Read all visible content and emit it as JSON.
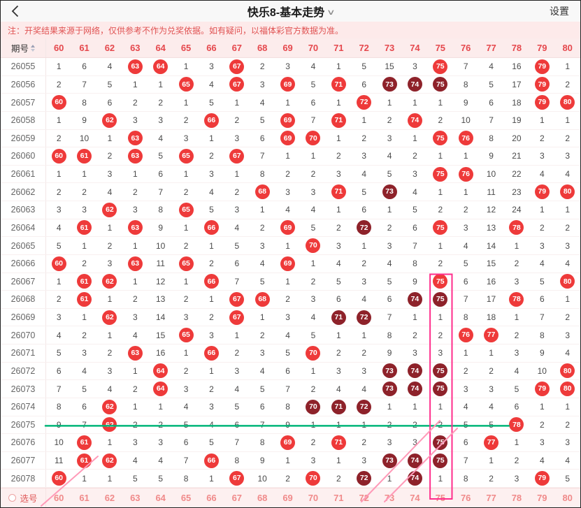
{
  "header": {
    "title": "快乐8-基本走势",
    "settings_label": "设置"
  },
  "notice": {
    "text": "注：开奖结果来源于网络，仅供参考不作为兑奖依据。如有疑问，以福体彩官方数据为准。"
  },
  "table": {
    "period_header": "期号",
    "columns": [
      60,
      61,
      62,
      63,
      64,
      65,
      66,
      67,
      68,
      69,
      70,
      71,
      72,
      73,
      74,
      75,
      76,
      77,
      78,
      79,
      80
    ],
    "legend": {
      "C": "drawn-number",
      "D": "drawn-number-highlight"
    },
    "rows": [
      {
        "period": "26055",
        "cells": [
          "1",
          "6",
          "4",
          "C",
          "C",
          "1",
          "3",
          "C",
          "2",
          "3",
          "4",
          "1",
          "5",
          "15",
          "3",
          "C",
          "7",
          "4",
          "16",
          "C",
          "1"
        ]
      },
      {
        "period": "26056",
        "cells": [
          "2",
          "7",
          "5",
          "1",
          "1",
          "C",
          "4",
          "C",
          "3",
          "C",
          "5",
          "C",
          "6",
          "D",
          "D",
          "D",
          "8",
          "5",
          "17",
          "C",
          "2"
        ]
      },
      {
        "period": "26057",
        "cells": [
          "C",
          "8",
          "6",
          "2",
          "2",
          "1",
          "5",
          "1",
          "4",
          "1",
          "6",
          "1",
          "C",
          "1",
          "1",
          "1",
          "9",
          "6",
          "18",
          "C",
          "C"
        ]
      },
      {
        "period": "26058",
        "cells": [
          "1",
          "9",
          "C",
          "3",
          "3",
          "2",
          "C",
          "2",
          "5",
          "C",
          "7",
          "C",
          "1",
          "2",
          "C",
          "2",
          "10",
          "7",
          "19",
          "1",
          "1"
        ]
      },
      {
        "period": "26059",
        "cells": [
          "2",
          "10",
          "1",
          "C",
          "4",
          "3",
          "1",
          "3",
          "6",
          "C",
          "C",
          "1",
          "2",
          "3",
          "1",
          "C",
          "C",
          "8",
          "20",
          "2",
          "2"
        ]
      },
      {
        "period": "26060",
        "cells": [
          "C",
          "C",
          "2",
          "C",
          "5",
          "C",
          "2",
          "C",
          "7",
          "1",
          "1",
          "2",
          "3",
          "4",
          "2",
          "1",
          "1",
          "9",
          "21",
          "3",
          "3"
        ]
      },
      {
        "period": "26061",
        "cells": [
          "1",
          "1",
          "3",
          "1",
          "6",
          "1",
          "3",
          "1",
          "8",
          "2",
          "2",
          "3",
          "4",
          "5",
          "3",
          "C",
          "C",
          "10",
          "22",
          "4",
          "4"
        ]
      },
      {
        "period": "26062",
        "cells": [
          "2",
          "2",
          "4",
          "2",
          "7",
          "2",
          "4",
          "2",
          "C",
          "3",
          "3",
          "C",
          "5",
          "D",
          "4",
          "1",
          "1",
          "11",
          "23",
          "C",
          "C"
        ]
      },
      {
        "period": "26063",
        "cells": [
          "3",
          "3",
          "C",
          "3",
          "8",
          "C",
          "5",
          "3",
          "1",
          "4",
          "4",
          "1",
          "6",
          "1",
          "5",
          "2",
          "2",
          "12",
          "24",
          "1",
          "1"
        ]
      },
      {
        "period": "26064",
        "cells": [
          "4",
          "C",
          "1",
          "C",
          "9",
          "1",
          "C",
          "4",
          "2",
          "C",
          "5",
          "2",
          "D",
          "2",
          "6",
          "C",
          "3",
          "13",
          "C",
          "2",
          "2"
        ]
      },
      {
        "period": "26065",
        "cells": [
          "5",
          "1",
          "2",
          "1",
          "10",
          "2",
          "1",
          "5",
          "3",
          "1",
          "C",
          "3",
          "1",
          "3",
          "7",
          "1",
          "4",
          "14",
          "1",
          "3",
          "3"
        ]
      },
      {
        "period": "26066",
        "cells": [
          "C",
          "2",
          "3",
          "C",
          "11",
          "C",
          "2",
          "6",
          "4",
          "C",
          "1",
          "4",
          "2",
          "4",
          "8",
          "2",
          "5",
          "15",
          "2",
          "4",
          "4"
        ]
      },
      {
        "period": "26067",
        "cells": [
          "1",
          "C",
          "C",
          "1",
          "12",
          "1",
          "C",
          "7",
          "5",
          "1",
          "2",
          "5",
          "3",
          "5",
          "9",
          "C",
          "6",
          "16",
          "3",
          "5",
          "C"
        ]
      },
      {
        "period": "26068",
        "cells": [
          "2",
          "C",
          "1",
          "2",
          "13",
          "2",
          "1",
          "C",
          "C",
          "2",
          "3",
          "6",
          "4",
          "6",
          "D",
          "D",
          "7",
          "17",
          "C",
          "6",
          "1"
        ]
      },
      {
        "period": "26069",
        "cells": [
          "3",
          "1",
          "C",
          "3",
          "14",
          "3",
          "2",
          "C",
          "1",
          "3",
          "4",
          "D",
          "D",
          "7",
          "1",
          "1",
          "8",
          "18",
          "1",
          "7",
          "2"
        ]
      },
      {
        "period": "26070",
        "cells": [
          "4",
          "2",
          "1",
          "4",
          "15",
          "C",
          "3",
          "1",
          "2",
          "4",
          "5",
          "1",
          "1",
          "8",
          "2",
          "2",
          "C",
          "C",
          "2",
          "8",
          "3"
        ]
      },
      {
        "period": "26071",
        "cells": [
          "5",
          "3",
          "2",
          "C",
          "16",
          "1",
          "C",
          "2",
          "3",
          "5",
          "C",
          "2",
          "2",
          "9",
          "3",
          "3",
          "1",
          "1",
          "3",
          "9",
          "4"
        ]
      },
      {
        "period": "26072",
        "cells": [
          "6",
          "4",
          "3",
          "1",
          "C",
          "2",
          "1",
          "3",
          "4",
          "6",
          "1",
          "3",
          "3",
          "D",
          "D",
          "D",
          "2",
          "2",
          "4",
          "10",
          "C"
        ]
      },
      {
        "period": "26073",
        "cells": [
          "7",
          "5",
          "4",
          "2",
          "C",
          "3",
          "2",
          "4",
          "5",
          "7",
          "2",
          "4",
          "4",
          "D",
          "D",
          "D",
          "3",
          "3",
          "5",
          "C",
          "C"
        ]
      },
      {
        "period": "26074",
        "cells": [
          "8",
          "6",
          "C",
          "1",
          "1",
          "4",
          "3",
          "5",
          "6",
          "8",
          "D",
          "D",
          "D",
          "1",
          "1",
          "1",
          "4",
          "4",
          "6",
          "1",
          "1"
        ]
      },
      {
        "period": "26075",
        "cells": [
          "9",
          "7",
          "C",
          "2",
          "2",
          "5",
          "4",
          "6",
          "7",
          "9",
          "1",
          "1",
          "1",
          "2",
          "2",
          "2",
          "5",
          "5",
          "C",
          "2",
          "2"
        ]
      },
      {
        "period": "26076",
        "cells": [
          "10",
          "C",
          "1",
          "3",
          "3",
          "6",
          "5",
          "7",
          "8",
          "C",
          "2",
          "C",
          "2",
          "3",
          "3",
          "D",
          "6",
          "C",
          "1",
          "3",
          "3"
        ]
      },
      {
        "period": "26077",
        "cells": [
          "11",
          "C",
          "C",
          "4",
          "4",
          "7",
          "C",
          "8",
          "9",
          "1",
          "3",
          "1",
          "3",
          "D",
          "D",
          "D",
          "7",
          "1",
          "2",
          "4",
          "4"
        ]
      },
      {
        "period": "26078",
        "cells": [
          "C",
          "1",
          "1",
          "5",
          "5",
          "8",
          "1",
          "C",
          "10",
          "2",
          "C",
          "2",
          "D",
          "1",
          "D",
          "1",
          "8",
          "2",
          "3",
          "C",
          "5"
        ]
      }
    ]
  },
  "footer": {
    "label": "选号"
  },
  "colors": {
    "ball_red": "#ee3a3a",
    "ball_dark": "#8e222a",
    "header_red": "#e5484d",
    "box_pink": "#ff2e8c",
    "stroke_pink": "#ff9ab8",
    "line_green": "#00b578"
  },
  "annotations": {
    "box": {
      "column": 75,
      "from_period": "26067",
      "to_period": "26078"
    },
    "hline": {
      "period": "26075",
      "to_column": 78
    },
    "strokes": [
      [
        58,
        723,
        139,
        652
      ],
      [
        516,
        717,
        628,
        601
      ],
      [
        549,
        717,
        653,
        612
      ]
    ]
  }
}
